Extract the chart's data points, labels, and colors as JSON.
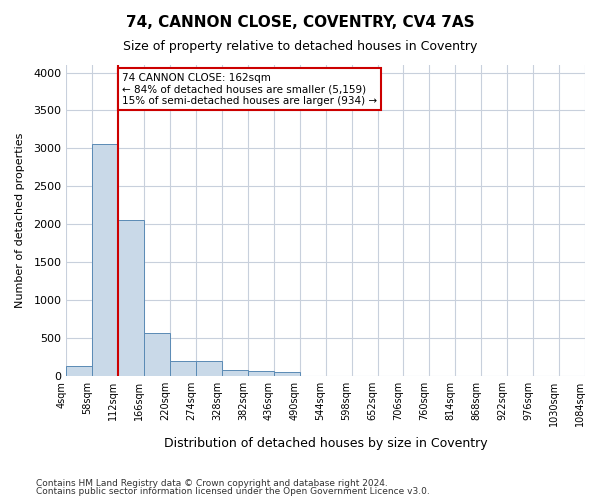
{
  "title_line1": "74, CANNON CLOSE, COVENTRY, CV4 7AS",
  "title_line2": "Size of property relative to detached houses in Coventry",
  "xlabel": "Distribution of detached houses by size in Coventry",
  "ylabel": "Number of detached properties",
  "footer_line1": "Contains HM Land Registry data © Crown copyright and database right 2024.",
  "footer_line2": "Contains public sector information licensed under the Open Government Licence v3.0.",
  "bin_labels": [
    "4sqm",
    "58sqm",
    "112sqm",
    "166sqm",
    "220sqm",
    "274sqm",
    "328sqm",
    "382sqm",
    "436sqm",
    "490sqm",
    "544sqm",
    "598sqm",
    "652sqm",
    "706sqm",
    "760sqm",
    "814sqm",
    "868sqm",
    "922sqm",
    "976sqm",
    "1030sqm",
    "1084sqm"
  ],
  "bar_heights": [
    130,
    3060,
    2060,
    560,
    200,
    200,
    75,
    60,
    50,
    0,
    0,
    0,
    0,
    0,
    0,
    0,
    0,
    0,
    0,
    0
  ],
  "bar_color": "#c9d9e8",
  "bar_edge_color": "#5a8ab5",
  "grid_color": "#c8d0dc",
  "annotation_text": "74 CANNON CLOSE: 162sqm\n← 84% of detached houses are smaller (5,159)\n15% of semi-detached houses are larger (934) →",
  "annotation_box_color": "#ffffff",
  "annotation_border_color": "#cc0000",
  "vline_x": 2,
  "vline_color": "#cc0000",
  "ylim": [
    0,
    4100
  ],
  "yticks": [
    0,
    500,
    1000,
    1500,
    2000,
    2500,
    3000,
    3500,
    4000
  ],
  "background_color": "#ffffff"
}
